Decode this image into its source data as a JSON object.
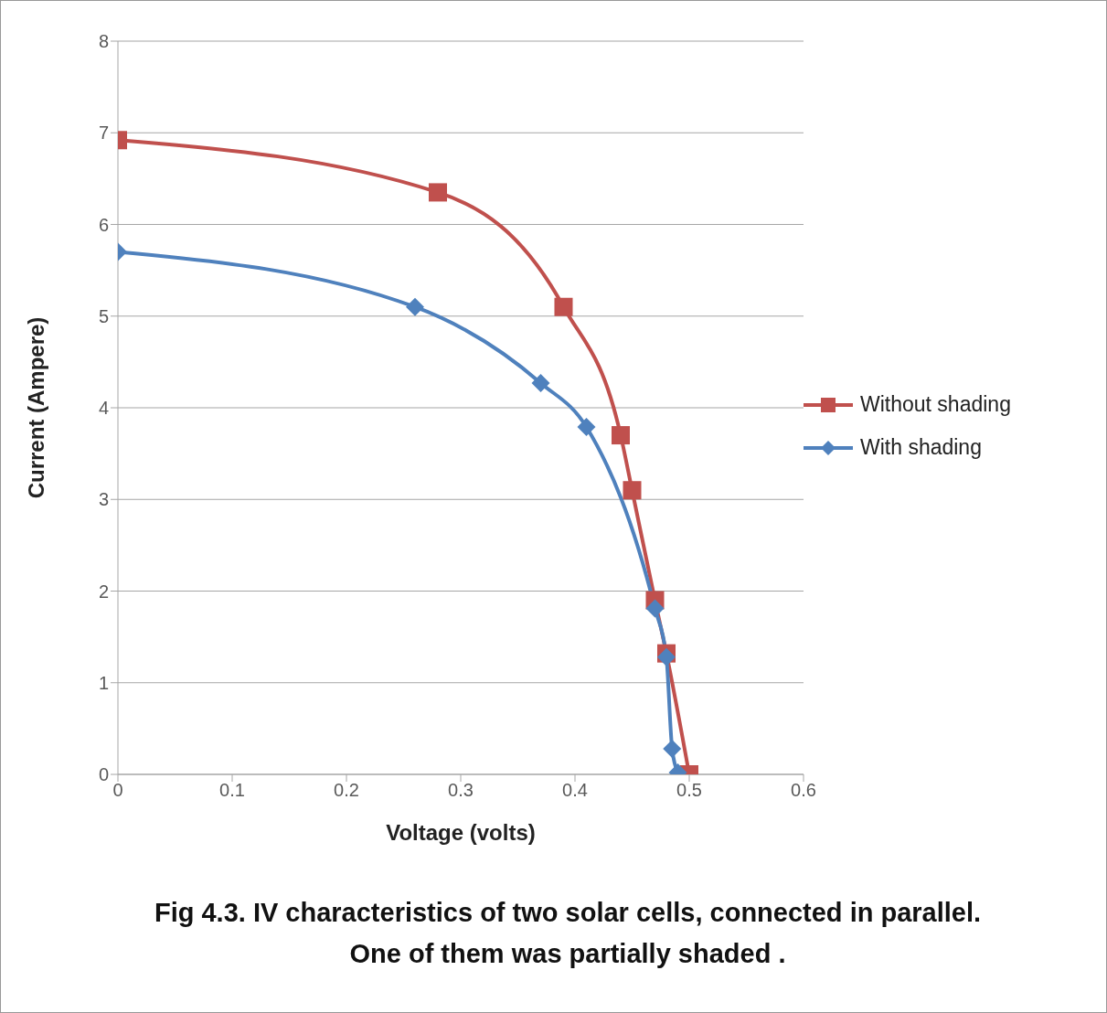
{
  "chart_data": {
    "type": "line",
    "title": "Fig 4.3.  IV characteristics  of two solar cells, connected in parallel. One of them was partially shaded .",
    "xlabel": "Voltage (volts)",
    "ylabel": "Current (Ampere)",
    "xlim": [
      0,
      0.6
    ],
    "xticks": [
      0,
      0.1,
      0.2,
      0.3,
      0.4,
      0.5,
      0.6
    ],
    "ylim": [
      0,
      8
    ],
    "yticks": [
      0,
      1,
      2,
      3,
      4,
      5,
      6,
      7,
      8
    ],
    "grid": "y",
    "legend": "right",
    "series": [
      {
        "name": "Without shading",
        "color": "#c0504d",
        "marker": "square",
        "x": [
          0,
          0.28,
          0.39,
          0.44,
          0.45,
          0.47,
          0.48,
          0.5
        ],
        "values": [
          6.92,
          6.35,
          5.1,
          3.7,
          3.1,
          1.9,
          1.32,
          0
        ]
      },
      {
        "name": "With shading",
        "color": "#4f81bd",
        "marker": "diamond",
        "x": [
          0,
          0.26,
          0.37,
          0.41,
          0.47,
          0.48,
          0.485,
          0.49
        ],
        "values": [
          5.7,
          5.1,
          4.27,
          3.79,
          1.81,
          1.28,
          0.28,
          0.02
        ]
      }
    ]
  }
}
